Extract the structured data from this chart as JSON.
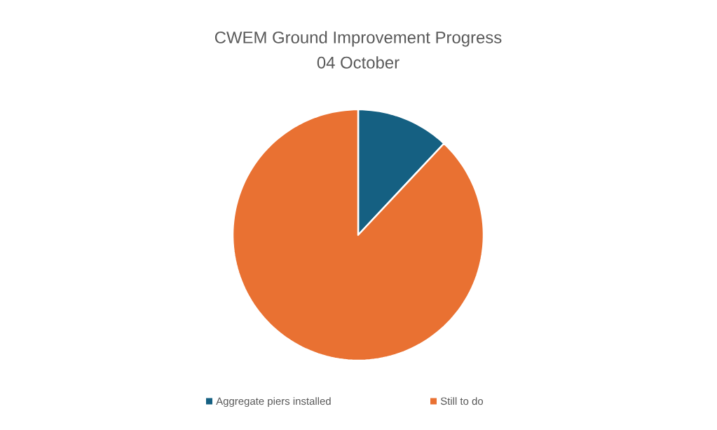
{
  "chart_data": {
    "type": "pie",
    "title": "CWEM Ground Improvement Progress\n04 October",
    "categories": [
      "Aggregate piers installed",
      "Still to do"
    ],
    "values": [
      12,
      88
    ],
    "colors": [
      "#156082",
      "#e97132"
    ],
    "legend": "bottom"
  }
}
